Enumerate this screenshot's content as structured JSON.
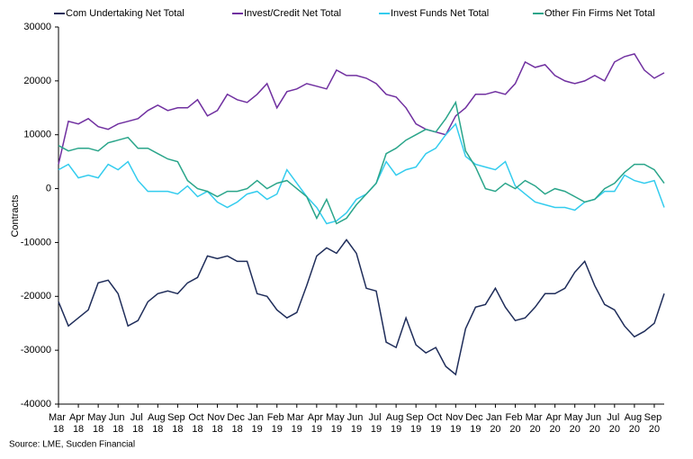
{
  "chart_data": {
    "type": "line",
    "y_label": "Contracts",
    "source": "Source: LME, Sucden Financial",
    "categories": [
      "Mar 18",
      null,
      "Apr 18",
      null,
      "May 18",
      null,
      "Jun 18",
      null,
      "Jul 18",
      null,
      "Aug 18",
      null,
      "Sep 18",
      null,
      "Oct 18",
      null,
      "Nov 18",
      null,
      "Dec 18",
      null,
      "Jan 19",
      null,
      "Feb 19",
      null,
      "Mar 19",
      null,
      "Apr 19",
      null,
      "May 19",
      null,
      "Jun 19",
      null,
      "Jul 19",
      null,
      "Aug 19",
      null,
      "Sep 19",
      null,
      "Oct 19",
      null,
      "Nov 19",
      null,
      "Dec 19",
      null,
      "Jan 20",
      null,
      "Feb 20",
      null,
      "Mar 20",
      null,
      "Apr 20",
      null,
      "May 20",
      null,
      "Jun 20",
      null,
      "Jul 20",
      null,
      "Aug 20",
      null,
      "Sep 20",
      null
    ],
    "series": [
      {
        "name": "Com Undertaking Net Total",
        "color": "#1f2d5a",
        "values": [
          -21000,
          -25500,
          -24000,
          -22500,
          -17500,
          -17000,
          -19500,
          -25500,
          -24500,
          -21000,
          -19500,
          -19000,
          -19500,
          -17500,
          -16500,
          -12500,
          -13000,
          -12500,
          -13500,
          -13500,
          -19500,
          -20000,
          -22500,
          -24000,
          -23000,
          -18000,
          -12500,
          -11000,
          -12000,
          -9500,
          -12000,
          -18500,
          -19000,
          -28500,
          -29500,
          -24000,
          -29000,
          -30500,
          -29500,
          -33000,
          -34500,
          -26000,
          -22000,
          -21500,
          -18500,
          -22000,
          -24500,
          -24000,
          -22000,
          -19500,
          -19500,
          -18500,
          -15500,
          -13500,
          -18000,
          -21500,
          -22500,
          -25500,
          -27500,
          -26500,
          -25000,
          -19500
        ]
      },
      {
        "name": "Invest/Credit Net Total",
        "color": "#7030a0",
        "values": [
          4500,
          12500,
          12000,
          13000,
          11500,
          11000,
          12000,
          12500,
          13000,
          14500,
          15500,
          14500,
          15000,
          15000,
          16500,
          13500,
          14500,
          17500,
          16500,
          16000,
          17500,
          19500,
          15000,
          18000,
          18500,
          19500,
          19000,
          18500,
          22000,
          21000,
          21000,
          20500,
          19500,
          17500,
          17000,
          15000,
          12000,
          11000,
          10500,
          10000,
          13500,
          15000,
          17500,
          17500,
          18000,
          17500,
          19500,
          23500,
          22500,
          23000,
          21000,
          20000,
          19500,
          20000,
          21000,
          20000,
          23500,
          24500,
          25000,
          22000,
          20500,
          21500
        ]
      },
      {
        "name": "Invest Funds Net Total",
        "color": "#33ccee",
        "values": [
          3500,
          4500,
          2000,
          2500,
          2000,
          4500,
          3500,
          5000,
          1500,
          -500,
          -500,
          -500,
          -1000,
          500,
          -1500,
          -500,
          -2500,
          -3500,
          -2500,
          -1000,
          -500,
          -2000,
          -1000,
          3500,
          1000,
          -1500,
          -3500,
          -6500,
          -6000,
          -4500,
          -2000,
          -1000,
          1000,
          5000,
          2500,
          3500,
          4000,
          6500,
          7500,
          10000,
          12000,
          6000,
          4500,
          4000,
          3500,
          5000,
          500,
          -1000,
          -2500,
          -3000,
          -3500,
          -3500,
          -4000,
          -2500,
          -2000,
          -500,
          -500,
          2500,
          1500,
          1000,
          1500,
          -3500
        ]
      },
      {
        "name": "Other Fin Firms Net Total",
        "color": "#2aa58a",
        "values": [
          8000,
          7000,
          7500,
          7500,
          7000,
          8500,
          9000,
          9500,
          7500,
          7500,
          6500,
          5500,
          5000,
          1500,
          0,
          -500,
          -1500,
          -500,
          -500,
          0,
          1500,
          0,
          1000,
          1500,
          0,
          -1500,
          -5500,
          -2000,
          -6500,
          -5500,
          -3000,
          -1000,
          1000,
          6500,
          7500,
          9000,
          10000,
          11000,
          10500,
          13000,
          16000,
          7000,
          4000,
          0,
          -500,
          1000,
          0,
          1500,
          500,
          -1000,
          0,
          -500,
          -1500,
          -2500,
          -2000,
          0,
          1000,
          3000,
          4500,
          4500,
          3500,
          1000
        ]
      }
    ],
    "ylim": [
      -40000,
      30000
    ],
    "yticks": [
      -40000,
      -30000,
      -20000,
      -10000,
      0,
      10000,
      20000,
      30000
    ],
    "legend": "top",
    "grid": false
  }
}
